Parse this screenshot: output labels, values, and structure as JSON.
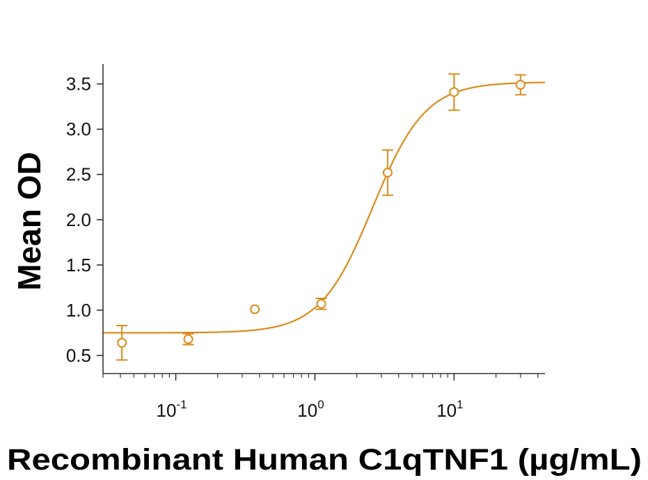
{
  "chart_data": {
    "type": "scatter",
    "title": "",
    "xlabel": "Recombinant Human C1qTNF1 (µg/mL)",
    "ylabel": "Mean OD",
    "x_scale": "log",
    "xlim": [
      0.03,
      45
    ],
    "ylim": [
      0.3,
      3.72
    ],
    "y_ticks": [
      "0.5",
      "1.0",
      "1.5",
      "2.0",
      "2.5",
      "3.0",
      "3.5"
    ],
    "x_ticks": [
      {
        "base": "10",
        "exp": "-1",
        "value": 0.1
      },
      {
        "base": "10",
        "exp": "0",
        "value": 1
      },
      {
        "base": "10",
        "exp": "1",
        "value": 10
      }
    ],
    "grid": false,
    "legend": "none",
    "color": "#DB8A18",
    "series": [
      {
        "x": [
          0.041,
          0.123,
          0.37,
          1.11,
          3.33,
          10,
          30
        ],
        "y": [
          0.64,
          0.68,
          1.01,
          1.07,
          2.52,
          3.41,
          3.49
        ],
        "error": [
          0.19,
          0.06,
          0.0,
          0.06,
          0.25,
          0.2,
          0.11
        ]
      }
    ],
    "fit_curve": {
      "bottom": 0.75,
      "top": 3.52,
      "ec50": 2.6,
      "hill": 2.3
    }
  }
}
